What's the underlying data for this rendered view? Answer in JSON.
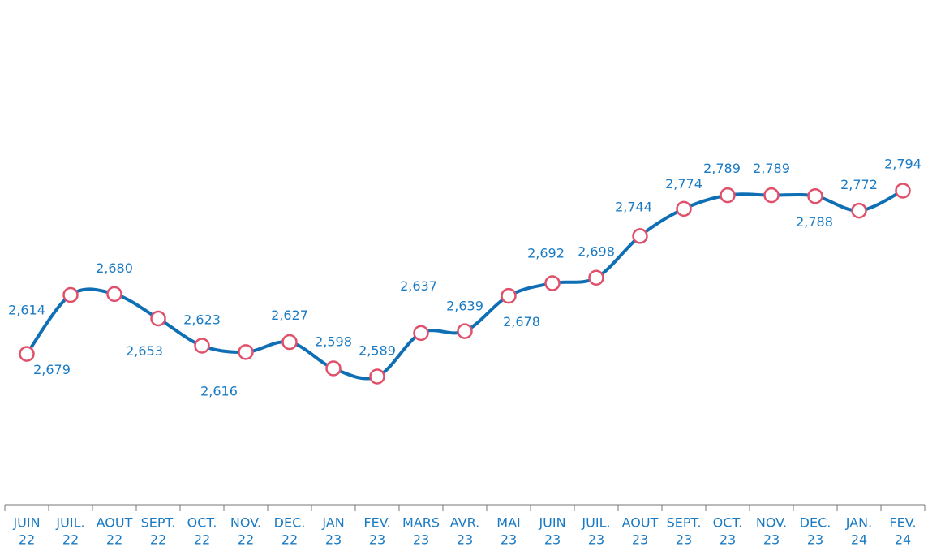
{
  "chart_data": {
    "type": "line",
    "categories": [
      [
        "JUIN",
        "22"
      ],
      [
        "JUIL.",
        "22"
      ],
      [
        "AOUT",
        "22"
      ],
      [
        "SEPT.",
        "22"
      ],
      [
        "OCT.",
        "22"
      ],
      [
        "NOV.",
        "22"
      ],
      [
        "DEC.",
        "22"
      ],
      [
        "JAN",
        "23"
      ],
      [
        "FEV.",
        "23"
      ],
      [
        "MARS",
        "23"
      ],
      [
        "AVR.",
        "23"
      ],
      [
        "MAI",
        "23"
      ],
      [
        "JUIN",
        "23"
      ],
      [
        "JUIL.",
        "23"
      ],
      [
        "AOUT",
        "23"
      ],
      [
        "SEPT.",
        "23"
      ],
      [
        "OCT.",
        "23"
      ],
      [
        "NOV.",
        "23"
      ],
      [
        "DEC.",
        "23"
      ],
      [
        "JAN.",
        "24"
      ],
      [
        "FEV.",
        "24"
      ]
    ],
    "series": [
      {
        "color": "#0f6fb5",
        "marker_color": "#e0506a",
        "values": [
          2.614,
          2.679,
          2.68,
          2.653,
          2.623,
          2.616,
          2.627,
          2.598,
          2.589,
          2.637,
          2.639,
          2.678,
          2.692,
          2.698,
          2.744,
          2.774,
          2.789,
          2.789,
          2.788,
          2.772,
          2.794
        ],
        "value_labels": [
          "2,614",
          "2,679",
          "2,680",
          "2,653",
          "2,623",
          "2,616",
          "2,627",
          "2,598",
          "2,589",
          "2,637",
          "2,639",
          "2,678",
          "2,692",
          "2,698",
          "2,744",
          "2,774",
          "2,789",
          "2,789",
          "2,788",
          "2,772",
          "2,794"
        ]
      }
    ]
  }
}
